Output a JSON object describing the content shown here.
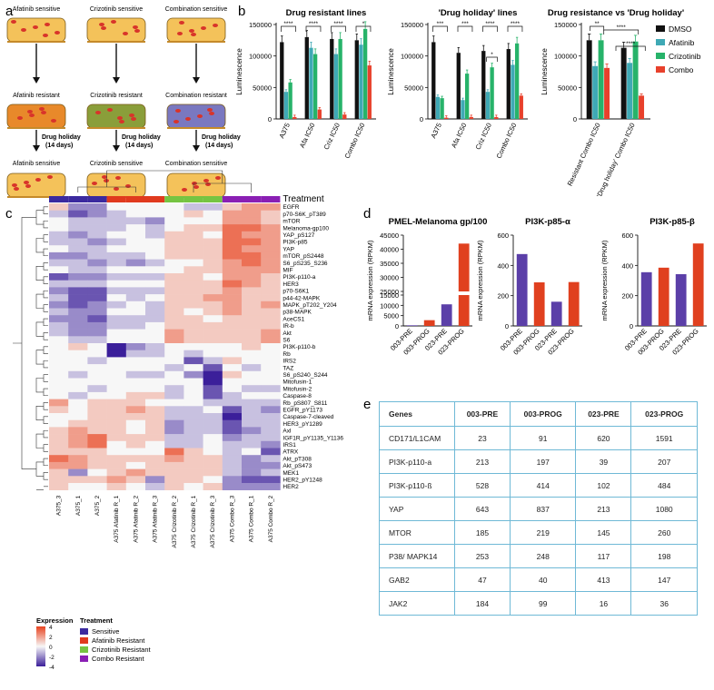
{
  "panel_labels": {
    "a": "a",
    "b": "b",
    "c": "c",
    "d": "d",
    "e": "e"
  },
  "panel_a": {
    "columns": [
      {
        "top": "Afatinib sensitive",
        "mid": "Afatinib resistant",
        "bottom": "Afatinib sensitive",
        "mid_color": "#e8892a"
      },
      {
        "top": "Crizotinib sensitive",
        "mid": "Crizotinib resistant",
        "bottom": "Crizotinib sensitive",
        "mid_color": "#8a9e3a"
      },
      {
        "top": "Combination sensitive",
        "mid": "Combination resistant",
        "bottom": "Combination sensitive",
        "mid_color": "#7a78c0"
      }
    ],
    "holiday_line1": "Drug holiday",
    "holiday_line2": "(14 days)",
    "sensitive_cell_color": "#f4c25a"
  },
  "chart_data": [
    {
      "type": "bar",
      "title": "Drug resistant lines",
      "ylabel": "Luminescence",
      "ylim": [
        0,
        150000
      ],
      "yticks": [
        "0",
        "50000",
        "100000",
        "150000"
      ],
      "categories": [
        "A375",
        "Afa IC50",
        "Criz IC50",
        "Combo IC50"
      ],
      "series": [
        {
          "name": "DMSO",
          "values": [
            122000,
            130000,
            127000,
            125000
          ]
        },
        {
          "name": "Afatinib",
          "values": [
            43000,
            113000,
            103000,
            118000
          ]
        },
        {
          "name": "Crizotinib",
          "values": [
            58000,
            103000,
            127000,
            143000
          ]
        },
        {
          "name": "Combo",
          "values": [
            3000,
            15000,
            7000,
            85000
          ]
        }
      ],
      "significance": [
        "****",
        "****",
        "****",
        "*"
      ]
    },
    {
      "type": "bar",
      "title": "'Drug holiday' lines",
      "ylabel": "Luminescence",
      "ylim": [
        0,
        150000
      ],
      "yticks": [
        "0",
        "50000",
        "100000",
        "150000"
      ],
      "categories": [
        "A375",
        "Afa IC50",
        "Criz IC50",
        "Combo IC50"
      ],
      "series": [
        {
          "name": "DMSO",
          "values": [
            122000,
            105000,
            108000,
            111000
          ]
        },
        {
          "name": "Afatinib",
          "values": [
            35000,
            30000,
            43000,
            86000
          ]
        },
        {
          "name": "Crizotinib",
          "values": [
            33000,
            72000,
            82000,
            120000
          ]
        },
        {
          "name": "Combo",
          "values": [
            2000,
            3000,
            3000,
            37000
          ]
        }
      ],
      "significance": [
        "***",
        "***",
        "****",
        "****"
      ],
      "extra_significance": [
        "*"
      ]
    },
    {
      "type": "bar",
      "title": "Drug resistance vs 'Drug holiday'",
      "ylabel": "Luminescence",
      "ylim": [
        0,
        150000
      ],
      "yticks": [
        "0",
        "50000",
        "100000",
        "150000"
      ],
      "categories": [
        "Resistant Combo IC50",
        "'Drug holiday' Combo IC50"
      ],
      "series": [
        {
          "name": "DMSO",
          "values": [
            125000,
            113000
          ]
        },
        {
          "name": "Afatinib",
          "values": [
            84000,
            89000
          ]
        },
        {
          "name": "Crizotinib",
          "values": [
            125000,
            123000
          ]
        },
        {
          "name": "Combo",
          "values": [
            81000,
            37000
          ]
        }
      ],
      "significance": [
        "**",
        "****",
        "****"
      ],
      "legend": [
        "DMSO",
        "Afatinib",
        "Crizotinib",
        "Combo"
      ]
    },
    {
      "type": "heatmap",
      "legend_title": "Treatment",
      "columns": [
        "A375_3",
        "A375_1",
        "A375_2",
        "A375 Afatinib R_1",
        "A375 Afatinib R_2",
        "A375 Afatinib R_3",
        "A375 Crizotinib R_2",
        "A375 Crizotinib R_1",
        "A375 Crizotinib R_3",
        "A375 Combo R_3",
        "A375 Combo R_1",
        "A375 Combo R_2"
      ],
      "column_groups": [
        "Sensitive",
        "Sensitive",
        "Sensitive",
        "Afatinib Resistant",
        "Afatinib Resistant",
        "Afatinib Resistant",
        "Crizotinib Resistant",
        "Crizotinib Resistant",
        "Crizotinib Resistant",
        "Combo Resistant",
        "Combo Resistant",
        "Combo Resistant"
      ],
      "rows": [
        "EGFR",
        "p70-S6K_pT389",
        "mTOR",
        "Melanoma-gp100",
        "YAP_pS127",
        "PI3K-p85",
        "YAP",
        "mTOR_pS2448",
        "S6_pS235_S236",
        "MIF",
        "PI3K-p110-a",
        "HER3",
        "p70-S6K1",
        "p44-42-MAPK",
        "MAPK_pT202_Y204",
        "p38-MAPK",
        "AceCS1",
        "IR-b",
        "Akt",
        "S6",
        "PI3K-p110-b",
        "Rb",
        "IRS2",
        "TAZ",
        "S6_pS240_S244",
        "Mitofusin-1",
        "Mitofusin-2",
        "Caspase-8",
        "Rb_pS807_S811",
        "EGFR_pY1173",
        "Caspase-7-cleaved",
        "HER3_pY1289",
        "Axl",
        "IGF1R_pY1135_Y1136",
        "IRS1",
        "ATRX",
        "Akt_pT308",
        "Akt_pS473",
        "MEK1",
        "HER2_pY1248",
        "HER2"
      ],
      "values": [
        [
          1,
          -2,
          -2,
          0,
          0,
          0,
          0,
          -1,
          -1,
          1,
          2,
          2
        ],
        [
          -1,
          -3,
          -2,
          -1,
          0,
          0,
          0,
          1,
          0,
          2,
          2,
          1
        ],
        [
          0,
          -1,
          -1,
          -1,
          -1,
          -2,
          0,
          0,
          0,
          2,
          2,
          1
        ],
        [
          0,
          -1,
          -1,
          -1,
          0,
          -1,
          0,
          1,
          1,
          3,
          3,
          2
        ],
        [
          -1,
          -2,
          -1,
          0,
          0,
          -1,
          1,
          1,
          0,
          3,
          2,
          2
        ],
        [
          -1,
          -1,
          -2,
          -1,
          0,
          0,
          1,
          1,
          1,
          3,
          3,
          2
        ],
        [
          0,
          -1,
          -1,
          0,
          0,
          0,
          1,
          1,
          1,
          3,
          2,
          2
        ],
        [
          -2,
          -2,
          -1,
          -1,
          -1,
          0,
          1,
          1,
          1,
          3,
          3,
          2
        ],
        [
          -1,
          -1,
          -2,
          -1,
          -2,
          -1,
          0,
          0,
          1,
          2,
          3,
          2
        ],
        [
          0,
          -1,
          -1,
          0,
          0,
          0,
          0,
          1,
          1,
          2,
          2,
          2
        ],
        [
          -3,
          -2,
          -2,
          -1,
          -1,
          -1,
          1,
          1,
          0,
          2,
          2,
          1
        ],
        [
          -1,
          -1,
          -1,
          0,
          0,
          0,
          1,
          1,
          1,
          3,
          2,
          1
        ],
        [
          -2,
          -3,
          -3,
          -1,
          -1,
          -1,
          1,
          1,
          1,
          2,
          1,
          1
        ],
        [
          -1,
          -3,
          -3,
          0,
          -1,
          0,
          1,
          1,
          2,
          2,
          1,
          1
        ],
        [
          -2,
          -3,
          -2,
          -1,
          0,
          -1,
          1,
          1,
          1,
          2,
          1,
          2
        ],
        [
          -1,
          -2,
          -2,
          0,
          0,
          -1,
          1,
          0,
          1,
          2,
          1,
          1
        ],
        [
          -2,
          -2,
          -3,
          -1,
          -1,
          -1,
          1,
          1,
          0,
          1,
          1,
          1
        ],
        [
          -1,
          -2,
          -2,
          -1,
          -1,
          0,
          1,
          1,
          1,
          1,
          1,
          1
        ],
        [
          -1,
          -2,
          -2,
          0,
          0,
          0,
          2,
          1,
          1,
          1,
          1,
          2
        ],
        [
          0,
          -1,
          -1,
          0,
          0,
          0,
          2,
          1,
          1,
          1,
          1,
          2
        ],
        [
          0,
          1,
          0,
          -4,
          -2,
          -1,
          0,
          0,
          0,
          0,
          1,
          0
        ],
        [
          0,
          0,
          0,
          -4,
          -1,
          -1,
          0,
          -1,
          0,
          0,
          0,
          0
        ],
        [
          0,
          0,
          -1,
          0,
          0,
          0,
          0,
          -3,
          -1,
          1,
          0,
          0
        ],
        [
          0,
          0,
          0,
          0,
          0,
          0,
          -1,
          0,
          -3,
          0,
          -1,
          0
        ],
        [
          0,
          -1,
          0,
          0,
          -1,
          -1,
          0,
          -2,
          -4,
          1,
          0,
          0
        ],
        [
          0,
          0,
          0,
          0,
          0,
          0,
          0,
          0,
          -4,
          0,
          0,
          0
        ],
        [
          0,
          0,
          -1,
          0,
          0,
          0,
          -1,
          0,
          -3,
          0,
          -1,
          -1
        ],
        [
          0,
          -1,
          0,
          0,
          1,
          1,
          -1,
          0,
          -3,
          -1,
          0,
          0
        ],
        [
          2,
          0,
          1,
          1,
          1,
          0,
          0,
          0,
          -1,
          -1,
          -1,
          -1
        ],
        [
          1,
          0,
          1,
          1,
          2,
          1,
          -1,
          -1,
          0,
          -3,
          -1,
          -2
        ],
        [
          0,
          0,
          1,
          1,
          1,
          1,
          -1,
          -1,
          -1,
          -4,
          -1,
          -1
        ],
        [
          0,
          1,
          1,
          1,
          0,
          1,
          -2,
          -1,
          -1,
          -3,
          -1,
          -1
        ],
        [
          1,
          2,
          1,
          1,
          0,
          1,
          -2,
          -1,
          -1,
          -3,
          -2,
          -1
        ],
        [
          1,
          2,
          3,
          1,
          1,
          1,
          -1,
          -1,
          0,
          -2,
          -1,
          -1
        ],
        [
          1,
          2,
          3,
          0,
          1,
          0,
          -1,
          -1,
          0,
          -1,
          -1,
          -2
        ],
        [
          1,
          1,
          1,
          0,
          0,
          0,
          3,
          1,
          0,
          -1,
          0,
          -3
        ],
        [
          3,
          2,
          1,
          1,
          1,
          1,
          2,
          1,
          1,
          -1,
          -2,
          -1
        ],
        [
          2,
          2,
          1,
          1,
          0,
          1,
          1,
          1,
          1,
          -1,
          -2,
          -2
        ],
        [
          1,
          -2,
          0,
          1,
          2,
          1,
          1,
          1,
          1,
          -1,
          -2,
          -1
        ],
        [
          1,
          1,
          1,
          2,
          1,
          -2,
          1,
          1,
          0,
          -2,
          -3,
          -3
        ],
        [
          1,
          0,
          0,
          1,
          0,
          -1,
          1,
          0,
          1,
          -2,
          -2,
          -2
        ]
      ],
      "scale_min": -4,
      "scale_max": 4,
      "scale_ticks": [
        "4",
        "2",
        "0",
        "-2",
        "-4"
      ],
      "scale_title": "Expression",
      "groups_legend": [
        {
          "label": "Sensitive",
          "color": "#3b2a9f"
        },
        {
          "label": "Afatinib Resistant",
          "color": "#e03a1e"
        },
        {
          "label": "Crizotinib Resistant",
          "color": "#76c442"
        },
        {
          "label": "Combo Resistant",
          "color": "#8a1fb4"
        }
      ]
    },
    {
      "type": "bar",
      "title": "PMEL-Melanoma gp/100",
      "ylabel": "mRNA expression (RPKM)",
      "ylim": [
        0,
        45000
      ],
      "yticks": [
        "0",
        "5000",
        "10000",
        "15000",
        "25000",
        "30000",
        "35000",
        "40000",
        "45000"
      ],
      "axis_break": true,
      "categories": [
        "003-PRE",
        "003-PROG",
        "023-PRE",
        "023-PROG"
      ],
      "values": [
        300,
        2800,
        10500,
        42000
      ]
    },
    {
      "type": "bar",
      "title": "PI3K-p85-α",
      "ylabel": "mRNA expression (RPKM)",
      "ylim": [
        0,
        600
      ],
      "yticks": [
        "0",
        "200",
        "400",
        "600"
      ],
      "categories": [
        "003-PRE",
        "003-PROG",
        "023-PRE",
        "023-PROG"
      ],
      "values": [
        475,
        288,
        160,
        290
      ]
    },
    {
      "type": "bar",
      "title": "PI3K-p85-β",
      "ylabel": "mRNA expression (RPKM)",
      "ylim": [
        0,
        600
      ],
      "yticks": [
        "0",
        "200",
        "400",
        "600"
      ],
      "categories": [
        "003-PRE",
        "003-PROG",
        "023-PRE",
        "023-PROG"
      ],
      "values": [
        355,
        385,
        342,
        545
      ]
    },
    {
      "type": "table",
      "columns": [
        "Genes",
        "003-PRE",
        "003-PROG",
        "023-PRE",
        "023-PROG"
      ],
      "rows": [
        [
          "CD171/L1CAM",
          "23",
          "91",
          "620",
          "1591"
        ],
        [
          "PI3K-p110-a",
          "213",
          "197",
          "39",
          "207"
        ],
        [
          "PI3K-p110-ß",
          "528",
          "414",
          "102",
          "484"
        ],
        [
          "YAP",
          "643",
          "837",
          "213",
          "1080"
        ],
        [
          "MTOR",
          "185",
          "219",
          "145",
          "260"
        ],
        [
          "P38/ MAPK14",
          "253",
          "248",
          "117",
          "198"
        ],
        [
          "GAB2",
          "47",
          "40",
          "413",
          "147"
        ],
        [
          "JAK2",
          "184",
          "99",
          "16",
          "36"
        ]
      ]
    }
  ],
  "colors": {
    "dmso": "#111111",
    "afatinib": "#3fa9b5",
    "crizotinib": "#27b36a",
    "combo": "#e8412c",
    "pre": "#5b3fa8",
    "prog": "#e0401f",
    "heat_low": "#3b1f9a",
    "heat_mid": "#f7f7f7",
    "heat_high": "#e8431f"
  }
}
